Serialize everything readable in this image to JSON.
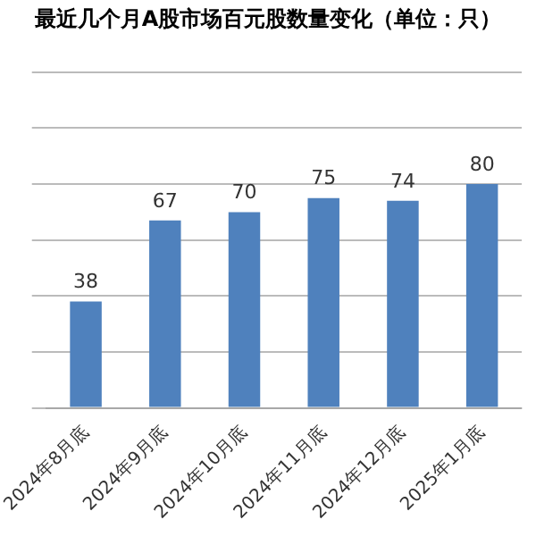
{
  "chart_data": {
    "type": "bar",
    "title": "最近几个月A股市场百元股数量变化（单位：只）",
    "categories": [
      "2024年8月底",
      "2024年9月底",
      "2024年10月底",
      "2024年11月底",
      "2024年12月底",
      "2025年1月底"
    ],
    "values": [
      38,
      67,
      70,
      75,
      74,
      80
    ],
    "color": "#4f81bd",
    "ylim": [
      0,
      120
    ],
    "yticks": [
      0,
      20,
      40,
      60,
      80,
      100,
      120
    ],
    "grid": "y",
    "tick_labels": "x",
    "data_labels": true,
    "legend": false
  }
}
